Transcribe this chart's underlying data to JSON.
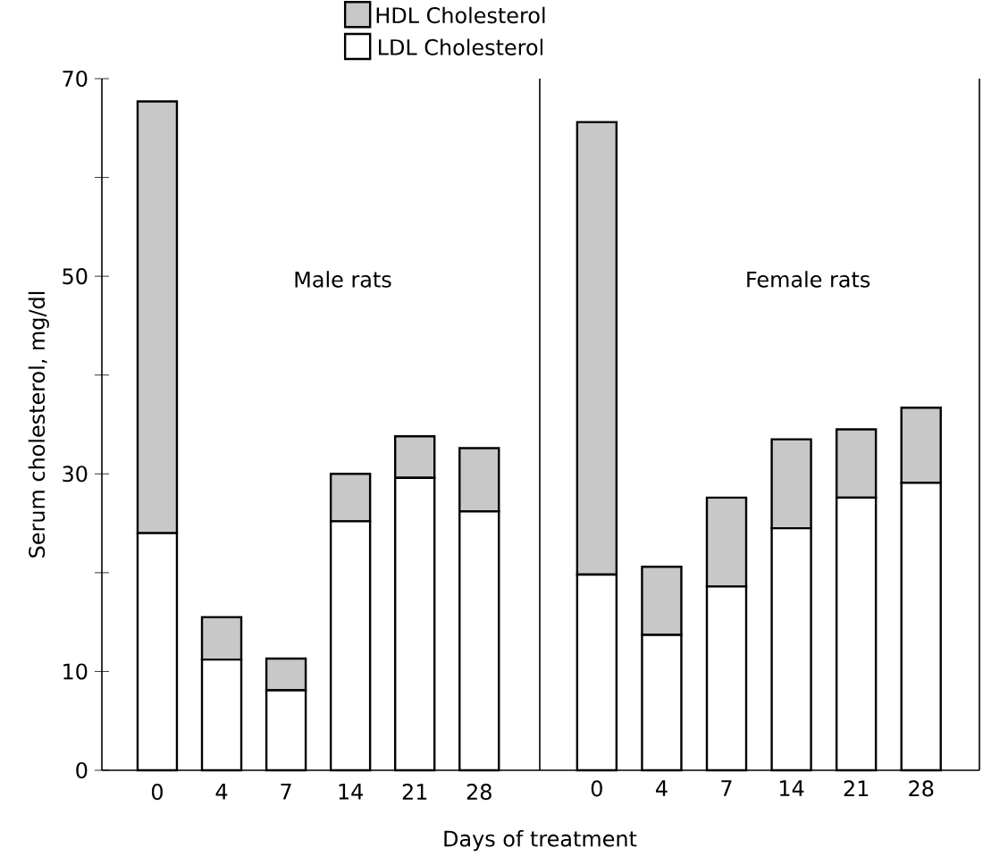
{
  "chart_data": [
    {
      "type": "bar",
      "title": "Male rats",
      "ylabel": "Serum cholesterol,   mg/dl",
      "xlabel": "Days of treatment",
      "stacked": true,
      "legend": "top",
      "categories": [
        "0",
        "4",
        "7",
        "14",
        "21",
        "28"
      ],
      "series": [
        {
          "name": "LDL Cholesterol",
          "color": "#ffffff",
          "values": [
            24.0,
            11.2,
            8.1,
            25.2,
            29.6,
            26.2
          ]
        },
        {
          "name": "HDL Cholesterol",
          "color": "#c8c8c8",
          "values": [
            43.7,
            4.3,
            3.2,
            4.8,
            4.2,
            6.4
          ]
        }
      ],
      "ylim": [
        0,
        70
      ],
      "yticks": [
        0,
        10,
        {
          "value": 20,
          "label": null
        },
        30,
        {
          "value": 40,
          "label": null
        },
        50,
        {
          "value": 60,
          "label": null
        },
        70
      ]
    },
    {
      "type": "bar",
      "title": "Female rats",
      "stacked": true,
      "tick_labels": "x",
      "categories": [
        "0",
        "4",
        "7",
        "14",
        "21",
        "28"
      ],
      "series": [
        {
          "color": "#ffffff",
          "values": [
            19.8,
            13.7,
            18.6,
            24.5,
            27.6,
            29.1
          ]
        },
        {
          "color": "#c8c8c8",
          "values": [
            45.8,
            6.9,
            9.0,
            9.0,
            6.9,
            7.6
          ]
        }
      ],
      "ylim": [
        0,
        70
      ]
    }
  ]
}
